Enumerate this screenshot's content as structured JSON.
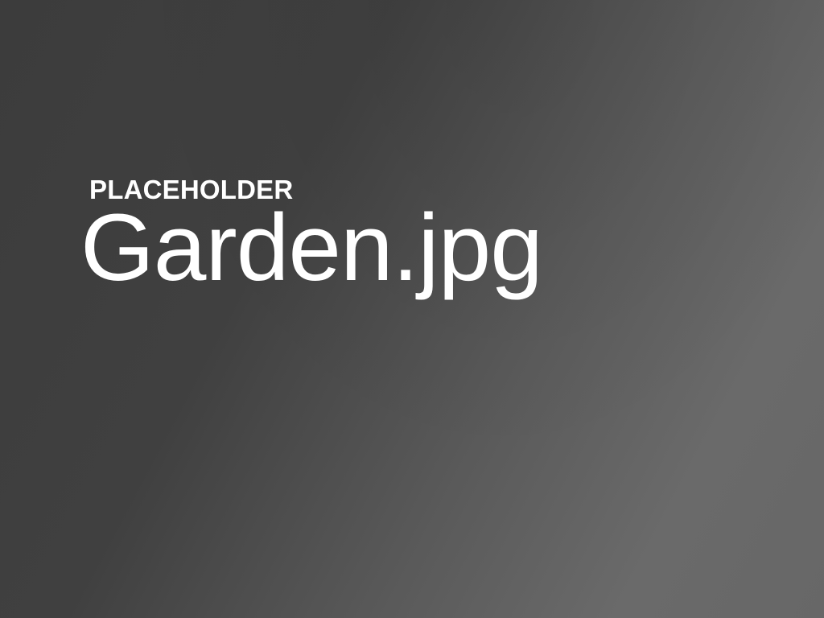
{
  "placeholder": {
    "label": "PLACEHOLDER",
    "filename": "Garden.jpg"
  },
  "colors": {
    "background_dark": "#3c3c3c",
    "background_light": "#6a6a6a",
    "text": "#ffffff"
  }
}
